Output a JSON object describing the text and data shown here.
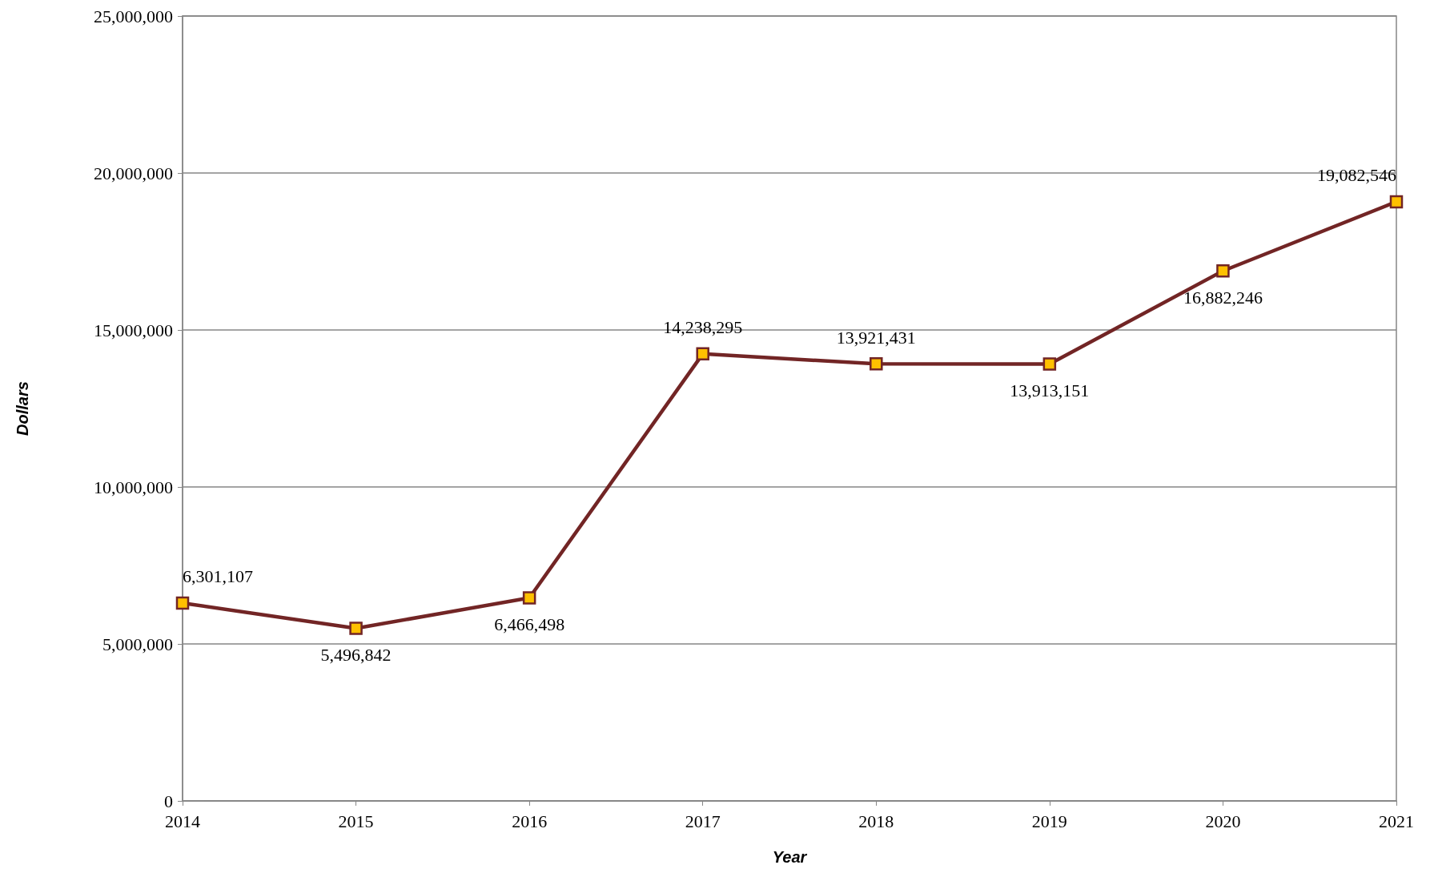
{
  "chart_data": {
    "type": "line",
    "xlabel": "Year",
    "ylabel": "Dollars",
    "x": [
      2014,
      2015,
      2016,
      2017,
      2018,
      2019,
      2020,
      2021
    ],
    "series": [
      {
        "color": "#722525",
        "colors": [
          "#ffc000",
          "#ffc000",
          "#ffc000",
          "#ffc000",
          "#ffc000",
          "#ffc000",
          "#ffc000",
          "#ffc000"
        ],
        "values": [
          6301107,
          5496842,
          6466498,
          14238295,
          13921431,
          13913151,
          16882246,
          19082546
        ],
        "value_labels": [
          "6,301,107",
          "5,496,842",
          "6,466,498",
          "14,238,295",
          "13,921,431",
          "13,913,151",
          "16,882,246",
          "19,082,546"
        ]
      }
    ],
    "xlim": [
      2014,
      2021
    ],
    "xticks": [
      2014,
      2015,
      2016,
      2017,
      2018,
      2019,
      2020,
      2021
    ],
    "ylim": [
      0,
      25000000
    ],
    "yticks": [
      0,
      {
        "value": 5000000,
        "label": "5,000,000"
      },
      {
        "value": 10000000,
        "label": "10,000,000"
      },
      {
        "value": 15000000,
        "label": "15,000,000"
      },
      {
        "value": 20000000,
        "label": "20,000,000"
      },
      {
        "value": 25000000,
        "label": "25,000,000"
      }
    ],
    "grid": "y",
    "marker": "square",
    "line_style": "solid"
  }
}
